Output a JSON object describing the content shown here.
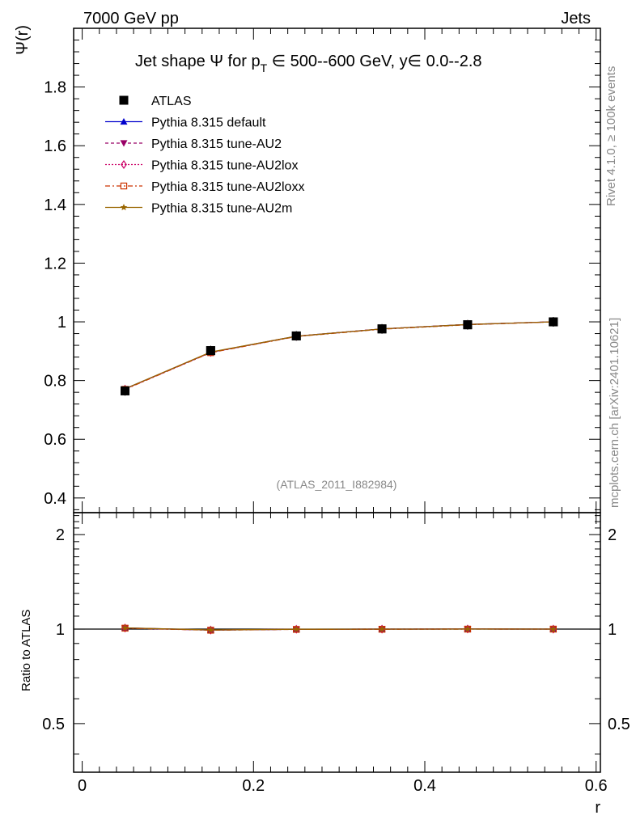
{
  "header": {
    "left": "7000 GeV pp",
    "right": "Jets"
  },
  "side_labels": {
    "rivet": "Rivet 4.1.0, ≥ 100k events",
    "mcplots": "mcplots.cern.ch [arXiv:2401.10621]"
  },
  "chart_data": [
    {
      "type": "line",
      "panel": "main",
      "title": "Jet shape Ψ for p_T ∈ 500--600 GeV, y∈ 0.0--2.8",
      "title_parts": {
        "pre": "Jet shape Ψ for p",
        "sub": "T",
        "post": " ∈ 500--600 GeV, y∈ 0.0--2.8"
      },
      "ylabel": "Ψ(r)",
      "xlabel": "r",
      "xlim": [
        -0.01,
        0.605
      ],
      "ylim": [
        0.35,
        2.0
      ],
      "x_ticks": [
        0,
        0.2,
        0.4,
        0.6
      ],
      "x_tick_labels": [
        "0",
        "0.2",
        "0.4",
        "0.6"
      ],
      "y_ticks": [
        0.4,
        0.6,
        0.8,
        1.0,
        1.2,
        1.4,
        1.6,
        1.8
      ],
      "y_tick_labels": [
        "0.4",
        "0.6",
        "0.8",
        "1",
        "1.2",
        "1.4",
        "1.6",
        "1.8"
      ],
      "watermark": "(ATLAS_2011_I882984)",
      "legend_position": "top-left",
      "x": [
        0.05,
        0.15,
        0.25,
        0.35,
        0.45,
        0.55
      ],
      "series": [
        {
          "name": "ATLAS",
          "color": "#000000",
          "marker": "square",
          "line": "none",
          "values": [
            0.765,
            0.902,
            0.952,
            0.976,
            0.99,
            1.0
          ]
        },
        {
          "name": "Pythia 8.315 default",
          "color": "#0000cc",
          "marker": "triangle-up",
          "line": "solid",
          "values": [
            0.772,
            0.896,
            0.951,
            0.976,
            0.991,
            1.0
          ]
        },
        {
          "name": "Pythia 8.315 tune-AU2",
          "color": "#990066",
          "marker": "triangle-down",
          "line": "dashed",
          "values": [
            0.771,
            0.896,
            0.951,
            0.976,
            0.991,
            1.0
          ]
        },
        {
          "name": "Pythia 8.315 tune-AU2lox",
          "color": "#cc0066",
          "marker": "diamond-open",
          "line": "dotted",
          "values": [
            0.771,
            0.896,
            0.951,
            0.976,
            0.991,
            1.0
          ]
        },
        {
          "name": "Pythia 8.315 tune-AU2loxx",
          "color": "#cc3300",
          "marker": "square-open",
          "line": "dashdot",
          "values": [
            0.77,
            0.895,
            0.95,
            0.975,
            0.99,
            1.0
          ]
        },
        {
          "name": "Pythia 8.315 tune-AU2m",
          "color": "#996600",
          "marker": "star",
          "line": "solid",
          "values": [
            0.772,
            0.897,
            0.951,
            0.976,
            0.991,
            1.0
          ]
        }
      ]
    },
    {
      "type": "line",
      "panel": "ratio",
      "ylabel": "Ratio to ATLAS",
      "xlabel": "r",
      "xlim": [
        -0.01,
        0.605
      ],
      "ylim": [
        0.35,
        2.35
      ],
      "y_scale": "log",
      "y_ticks": [
        0.5,
        1,
        2
      ],
      "y_tick_labels": [
        "0.5",
        "1",
        "2"
      ],
      "x": [
        0.05,
        0.15,
        0.25,
        0.35,
        0.45,
        0.55
      ],
      "series": [
        {
          "name": "Pythia 8.315 default",
          "color": "#0000cc",
          "values": [
            1.009,
            0.993,
            0.999,
            1.0,
            1.001,
            1.0
          ]
        },
        {
          "name": "Pythia 8.315 tune-AU2",
          "color": "#990066",
          "values": [
            1.008,
            0.993,
            0.999,
            1.0,
            1.001,
            1.0
          ]
        },
        {
          "name": "Pythia 8.315 tune-AU2lox",
          "color": "#cc0066",
          "values": [
            1.008,
            0.993,
            0.999,
            1.0,
            1.001,
            1.0
          ]
        },
        {
          "name": "Pythia 8.315 tune-AU2loxx",
          "color": "#cc3300",
          "values": [
            1.007,
            0.992,
            0.998,
            0.999,
            1.0,
            1.0
          ]
        },
        {
          "name": "Pythia 8.315 tune-AU2m",
          "color": "#996600",
          "values": [
            1.009,
            0.994,
            0.999,
            1.0,
            1.001,
            1.0
          ]
        }
      ]
    }
  ]
}
